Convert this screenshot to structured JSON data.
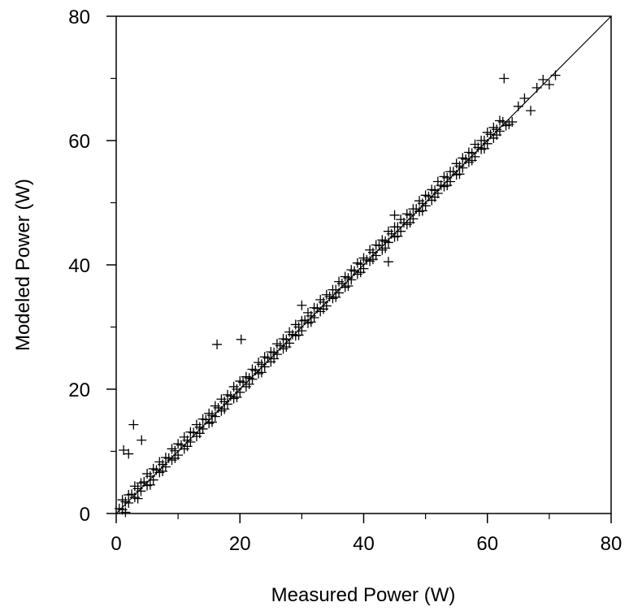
{
  "chart_data": {
    "type": "scatter",
    "title": "",
    "xlabel": "Measured Power (W)",
    "ylabel": "Modeled Power (W)",
    "xlim": [
      0,
      80
    ],
    "ylim": [
      0,
      80
    ],
    "x_ticks": [
      "0",
      "20",
      "40",
      "60",
      "80"
    ],
    "y_ticks": [
      "0",
      "20",
      "40",
      "60",
      "80"
    ],
    "marker": "plus",
    "marker_color": "#000000",
    "grid": false,
    "reference_line": {
      "from": [
        0,
        0
      ],
      "to": [
        80,
        80
      ],
      "label": ""
    },
    "series": [
      {
        "x": [
          0.5,
          1.0,
          1.5,
          2.0,
          2.5,
          3.0,
          3.5,
          4.0,
          4.5,
          5.0,
          5.5,
          6.0,
          6.5,
          7.0,
          7.5,
          8.0,
          8.5,
          9.0,
          9.5,
          10.0,
          10.5,
          11.0,
          11.5,
          12.0,
          12.5,
          13.0,
          13.5,
          14.0,
          14.5,
          15.0,
          15.5,
          16.0,
          16.5,
          17.0,
          17.5,
          18.0,
          18.5,
          19.0,
          19.5,
          20.0,
          20.5,
          21.0,
          21.5,
          22.0,
          22.5,
          23.0,
          23.5,
          24.0,
          24.5,
          25.0,
          25.5,
          26.0,
          26.5,
          27.0,
          27.5,
          28.0,
          28.5,
          29.0,
          29.5,
          30.0,
          30.5,
          31.0,
          31.5,
          32.0,
          32.5,
          33.0,
          33.5,
          34.0,
          34.5,
          35.0,
          35.5,
          36.0,
          36.5,
          37.0,
          37.5,
          38.0,
          38.5,
          39.0,
          39.5,
          40.0,
          40.5,
          41.0,
          41.5,
          42.0,
          42.5,
          43.0,
          43.5,
          44.0,
          44.5,
          45.0,
          45.5,
          46.0,
          46.5,
          47.0,
          47.5,
          48.0,
          48.5,
          49.0,
          49.5,
          50.0,
          50.5,
          51.0,
          51.5,
          52.0,
          52.5,
          53.0,
          53.5,
          54.0,
          54.5,
          55.0,
          55.5,
          56.0,
          56.5,
          57.0,
          57.5,
          58.0,
          58.5,
          59.0,
          59.5,
          60.0,
          60.5,
          61.0,
          61.5,
          62.0,
          62.5,
          63.0,
          1.0,
          2.0,
          3.0,
          4.0,
          5.0,
          6.0,
          7.0,
          8.0,
          9.0,
          10.0,
          11.0,
          12.0,
          13.0,
          14.0,
          15.0,
          16.0,
          17.0,
          18.0,
          19.0,
          20.0,
          21.0,
          22.0,
          23.0,
          24.0,
          25.0,
          26.0,
          27.0,
          28.0,
          29.0,
          30.0,
          31.0,
          32.0,
          33.0,
          34.0,
          35.0,
          36.0,
          37.0,
          38.0,
          39.0,
          40.0,
          41.0,
          42.0,
          43.0,
          44.0,
          45.0,
          46.0,
          47.0,
          48.0,
          49.0,
          50.0,
          51.0,
          52.0,
          53.0,
          54.0,
          55.0,
          56.0,
          57.0,
          58.0,
          59.0,
          60.0,
          61.0,
          62.0,
          1.5,
          3.5,
          5.5,
          7.5,
          9.5,
          11.5,
          13.5,
          15.5,
          17.5,
          19.5,
          21.5,
          23.5,
          25.5,
          27.5,
          29.5,
          31.5,
          33.5,
          35.5,
          37.5,
          39.5,
          41.5,
          43.5,
          45.5,
          47.5,
          49.5,
          51.5,
          53.5,
          55.5,
          57.5,
          59.5,
          61.5,
          63.5,
          64.0,
          65.0,
          66.0,
          67.0,
          68.0,
          69.0,
          70.0,
          71.0,
          62.7,
          16.3,
          20.2,
          2.8,
          4.1,
          1.2,
          2.0,
          30.0,
          45.0,
          44.0
        ],
        "y": [
          0.8,
          0.6,
          1.9,
          1.7,
          3.1,
          2.6,
          4.0,
          3.6,
          5.1,
          4.5,
          6.0,
          5.4,
          7.0,
          6.6,
          7.9,
          7.5,
          8.9,
          8.6,
          10.1,
          9.4,
          11.0,
          10.4,
          11.8,
          11.5,
          13.0,
          12.4,
          13.9,
          13.6,
          15.1,
          14.5,
          15.8,
          15.6,
          17.0,
          16.5,
          18.0,
          17.6,
          18.9,
          18.5,
          20.0,
          19.5,
          21.1,
          20.4,
          21.8,
          21.6,
          23.0,
          22.5,
          24.0,
          23.6,
          25.0,
          24.4,
          25.9,
          25.6,
          27.0,
          26.5,
          28.0,
          27.4,
          28.8,
          28.6,
          30.0,
          29.4,
          31.1,
          30.6,
          31.8,
          31.5,
          33.0,
          32.5,
          34.0,
          33.4,
          34.9,
          34.6,
          36.0,
          35.5,
          37.0,
          36.4,
          37.9,
          37.6,
          39.0,
          38.5,
          40.1,
          39.4,
          40.8,
          40.6,
          42.0,
          41.5,
          43.1,
          42.4,
          43.8,
          43.6,
          45.0,
          44.5,
          46.1,
          45.4,
          46.8,
          46.5,
          48.0,
          47.4,
          49.0,
          48.6,
          49.9,
          49.5,
          51.0,
          50.4,
          52.0,
          51.5,
          52.8,
          52.6,
          54.0,
          53.4,
          55.0,
          54.5,
          55.9,
          55.6,
          57.0,
          56.5,
          58.0,
          57.4,
          58.9,
          58.6,
          60.0,
          59.5,
          61.0,
          60.4,
          61.8,
          61.5,
          63.0,
          62.4,
          2.2,
          3.0,
          4.4,
          4.9,
          6.4,
          7.2,
          8.3,
          9.0,
          10.4,
          11.2,
          12.3,
          13.1,
          14.3,
          15.2,
          16.1,
          17.3,
          18.4,
          19.1,
          20.4,
          21.3,
          22.0,
          23.2,
          24.3,
          25.2,
          26.0,
          27.3,
          28.1,
          29.2,
          30.4,
          31.0,
          32.3,
          33.1,
          34.4,
          35.2,
          36.0,
          37.3,
          38.1,
          39.2,
          40.3,
          41.1,
          42.4,
          43.2,
          44.0,
          45.4,
          46.1,
          47.3,
          48.2,
          49.0,
          50.3,
          51.2,
          52.1,
          53.4,
          54.2,
          55.0,
          56.3,
          57.2,
          58.1,
          59.4,
          60.0,
          61.3,
          62.1,
          63.2,
          0.2,
          2.4,
          4.6,
          6.8,
          8.9,
          10.8,
          12.9,
          14.7,
          16.8,
          18.7,
          20.8,
          22.7,
          24.9,
          26.8,
          28.7,
          30.8,
          32.9,
          34.8,
          36.6,
          38.8,
          40.9,
          42.7,
          44.6,
          46.8,
          48.7,
          50.9,
          52.8,
          54.6,
          56.8,
          58.7,
          60.9,
          62.6,
          63.0,
          65.5,
          66.8,
          64.8,
          68.5,
          69.8,
          69.0,
          70.5,
          70.0,
          27.2,
          28.0,
          14.3,
          11.8,
          10.2,
          9.6,
          33.5,
          48.0,
          40.5
        ]
      }
    ]
  }
}
